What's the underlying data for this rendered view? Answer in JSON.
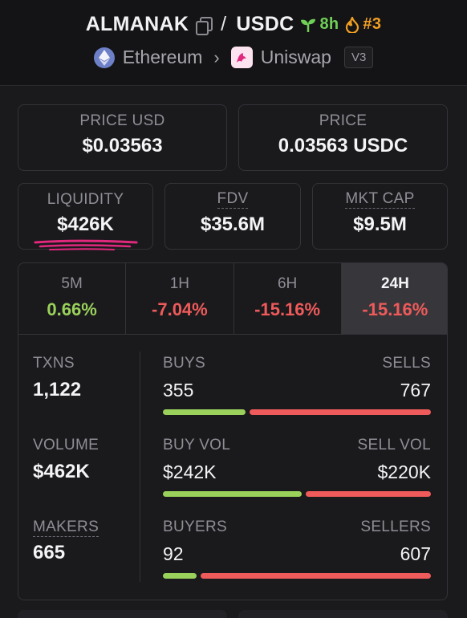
{
  "header": {
    "base_token": "ALMANAK",
    "separator": "/",
    "quote_token": "USDC",
    "age": "8h",
    "rank": "#3",
    "chain": "Ethereum",
    "dex": "Uniswap",
    "version": "V3"
  },
  "price_usd": {
    "label": "PRICE USD",
    "value": "$0.03563"
  },
  "price": {
    "label": "PRICE",
    "value": "0.03563 USDC"
  },
  "liquidity": {
    "label": "LIQUIDITY",
    "value": "$426K"
  },
  "fdv": {
    "label": "FDV",
    "value": "$35.6M"
  },
  "mkt_cap": {
    "label": "MKT CAP",
    "value": "$9.5M"
  },
  "timeframes": [
    {
      "label": "5M",
      "value": "0.66%",
      "trend": "up"
    },
    {
      "label": "1H",
      "value": "-7.04%",
      "trend": "down"
    },
    {
      "label": "6H",
      "value": "-15.16%",
      "trend": "down"
    },
    {
      "label": "24H",
      "value": "-15.16%",
      "trend": "down",
      "active": true
    }
  ],
  "metrics": {
    "txns": {
      "label": "TXNS",
      "value": "1,122"
    },
    "volume": {
      "label": "VOLUME",
      "value": "$462K"
    },
    "makers": {
      "label": "MAKERS",
      "value": "665"
    }
  },
  "ratios": {
    "txns": {
      "left_label": "BUYS",
      "right_label": "SELLS",
      "left_value": "355",
      "right_value": "767",
      "buy_share": 0.316
    },
    "volume": {
      "left_label": "BUY VOL",
      "right_label": "SELL VOL",
      "left_value": "$242K",
      "right_value": "$220K",
      "buy_share": 0.524
    },
    "makers": {
      "left_label": "BUYERS",
      "right_label": "SELLERS",
      "left_value": "92",
      "right_value": "607",
      "buy_share": 0.132
    }
  },
  "colors": {
    "positive": "#9ad15b",
    "negative": "#ef5a5a",
    "age": "#6fcf57",
    "rank": "#f0a022",
    "annotation": "#e0287d"
  }
}
